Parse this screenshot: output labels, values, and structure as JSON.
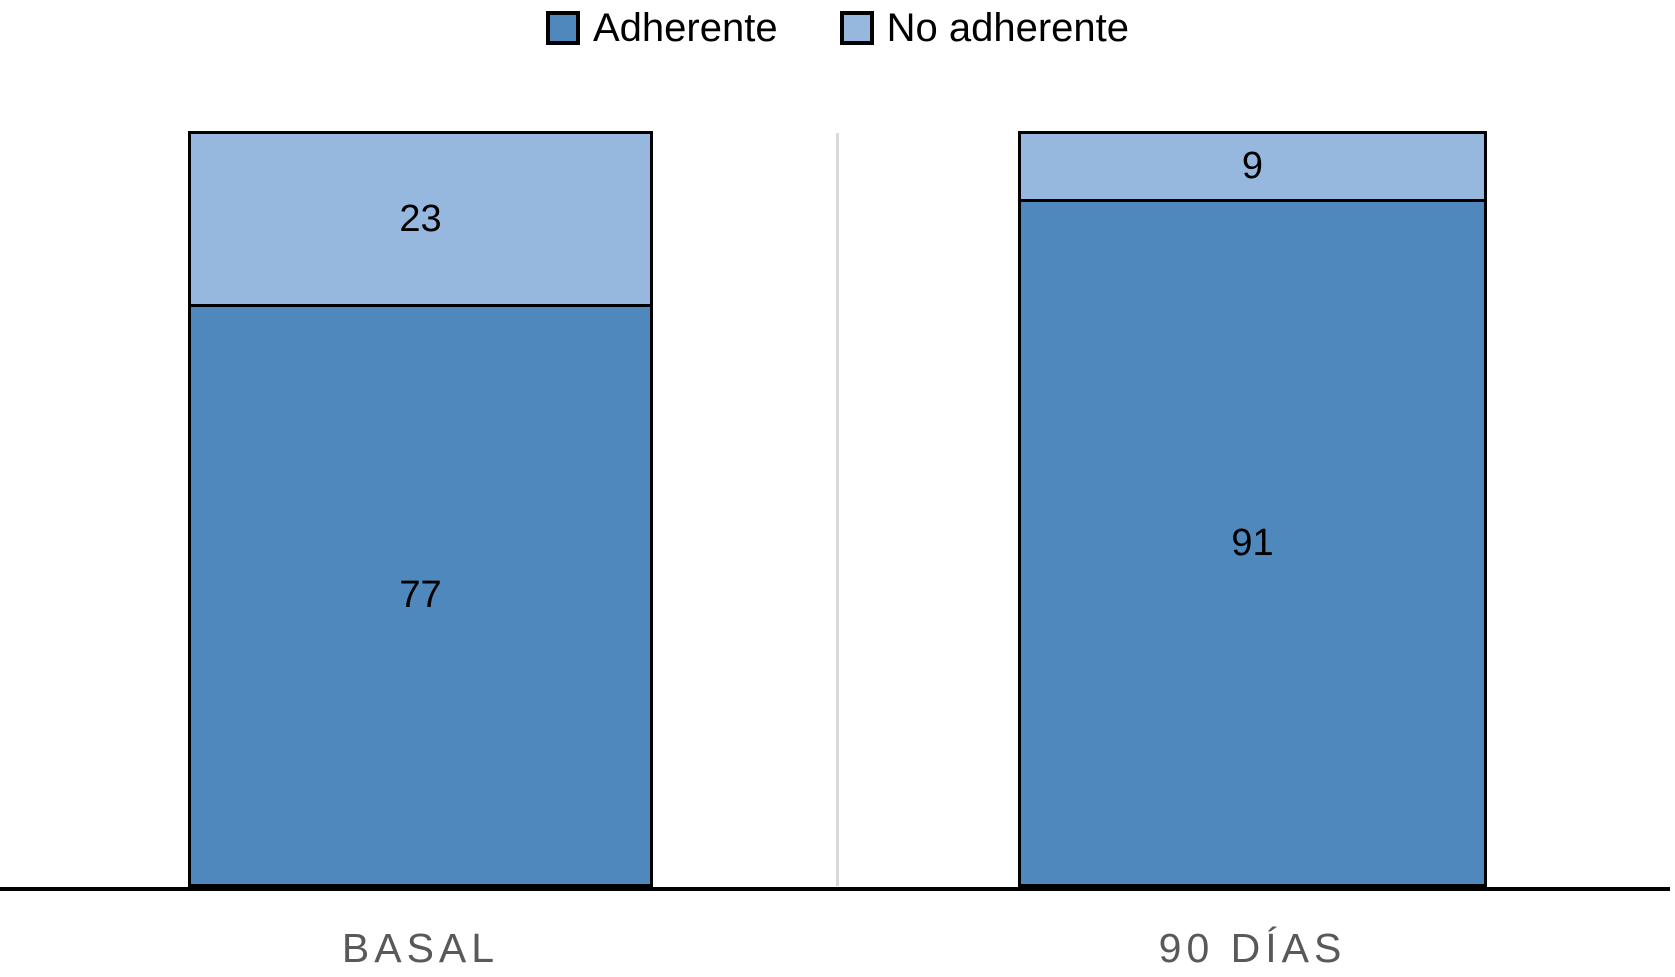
{
  "chart_data": {
    "type": "bar",
    "stacked": true,
    "orientation": "vertical",
    "categories": [
      "BASAL",
      "90 DÍAS"
    ],
    "series": [
      {
        "name": "Adherente",
        "color": "#4E88BC",
        "values": [
          77,
          91
        ]
      },
      {
        "name": "No adherente",
        "color": "#96B8DF",
        "values": [
          23,
          9
        ]
      }
    ],
    "ylim": [
      0,
      100
    ],
    "grid": "single light vertical divider between categories",
    "legend_position": "top-center",
    "value_labels_shown": true,
    "colors": {
      "bar_border": "#000000",
      "axis_line": "#000000",
      "value_label": "#000000",
      "category_label": "#595959",
      "divider": "#D9D9D9",
      "background": "#FFFFFF"
    }
  }
}
